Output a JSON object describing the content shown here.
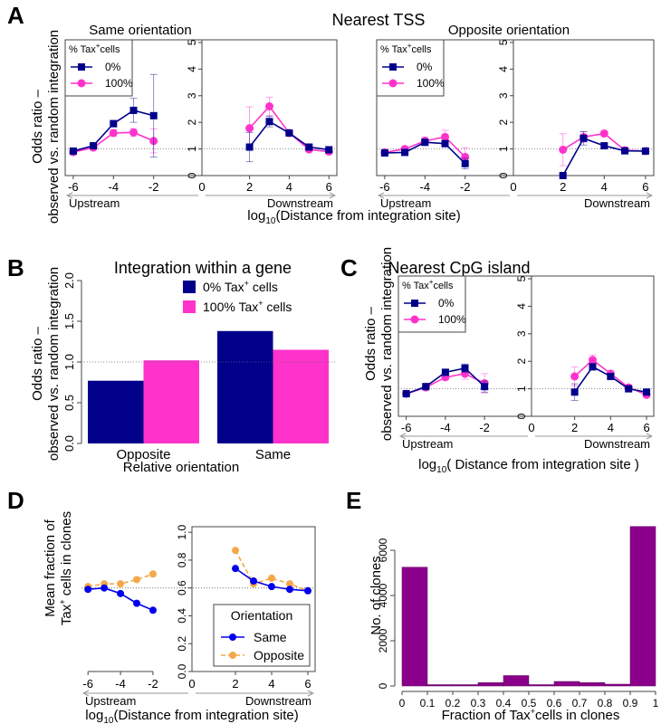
{
  "colors": {
    "c0": "#00008b",
    "c100": "#ff33cc",
    "same": "#0000ee",
    "opposite": "#f4a849",
    "bar": "#8b008b"
  },
  "panels": {
    "A": {
      "letter": "A",
      "title": "Nearest TSS",
      "ylabel_line1": "Odds ratio –",
      "ylabel_line2": "observed vs. random integration",
      "xlabel_main": "log",
      "xlabel_sub": "10",
      "xlabel_rest": "(Distance from integration site)",
      "legend": {
        "title_pre": "% Tax",
        "title_sup": "+",
        "title_post": "cells",
        "items": [
          "0%",
          "100%"
        ]
      },
      "left": {
        "subtitle": "Same orientation",
        "upstream": {
          "x": [
            -6,
            -5,
            -4,
            -3,
            -2
          ],
          "s0": [
            0.92,
            1.12,
            1.95,
            2.45,
            2.25
          ],
          "s100": [
            0.88,
            1.05,
            1.6,
            1.62,
            1.3
          ],
          "err0": [
            0.05,
            0.06,
            0.12,
            0.45,
            1.55
          ],
          "err100": [
            0.05,
            0.06,
            0.12,
            0.15,
            0.45
          ]
        },
        "downstream": {
          "x": [
            2,
            3,
            4,
            5,
            6
          ],
          "s0": [
            1.07,
            2.03,
            1.6,
            1.07,
            0.97
          ],
          "s100": [
            1.78,
            2.6,
            1.6,
            0.98,
            0.9
          ],
          "err0": [
            0.55,
            0.2,
            0.08,
            0.05,
            0.05
          ],
          "err100": [
            0.8,
            0.35,
            0.1,
            0.06,
            0.05
          ]
        }
      },
      "right": {
        "subtitle": "Opposite orientation",
        "upstream": {
          "x": [
            -6,
            -5,
            -4,
            -3,
            -2
          ],
          "s0": [
            0.85,
            0.87,
            1.25,
            1.2,
            0.45
          ],
          "s100": [
            0.87,
            1.0,
            1.3,
            1.45,
            0.7
          ],
          "err0": [
            0.05,
            0.05,
            0.12,
            0.12,
            0.2
          ],
          "err100": [
            0.05,
            0.06,
            0.15,
            0.25,
            0.35
          ]
        },
        "downstream": {
          "x": [
            2,
            3,
            4,
            5,
            6
          ],
          "s0": [
            0.0,
            1.4,
            1.12,
            0.93,
            0.92
          ],
          "s100": [
            0.97,
            1.45,
            1.58,
            0.95,
            0.92
          ],
          "err0": [
            0.05,
            0.25,
            0.08,
            0.05,
            0.05
          ],
          "err100": [
            0.6,
            0.2,
            0.1,
            0.06,
            0.05
          ]
        }
      },
      "xticks_up": [
        "-6",
        "-4",
        "-2"
      ],
      "xticks_down": [
        "2",
        "4",
        "6"
      ],
      "zero_tick": "0",
      "yticks": [
        "0",
        "1",
        "2",
        "3",
        "4",
        "5"
      ],
      "upstream_label": "Upstream",
      "downstream_label": "Downstream"
    },
    "B": {
      "letter": "B",
      "title": "Integration within a gene",
      "ylabel_line1": "Odds ratio –",
      "ylabel_line2": "observed vs. random integration",
      "xlabel": "Relative orientation",
      "yticks": [
        "0.0",
        "0.5",
        "1.0",
        "1.5",
        "2.0"
      ],
      "legend_items": [
        {
          "pre": "0% Tax",
          "sup": "+",
          "post": " cells"
        },
        {
          "pre": "100% Tax",
          "sup": "+",
          "post": " cells"
        }
      ],
      "chart_data": {
        "type": "bar",
        "categories": [
          "Opposite",
          "Same"
        ],
        "series": [
          {
            "name": "0% Tax+ cells",
            "values": [
              0.77,
              1.38
            ]
          },
          {
            "name": "100% Tax+ cells",
            "values": [
              1.02,
              1.15
            ]
          }
        ],
        "ylim": [
          0,
          2.0
        ],
        "xlabel": "Relative orientation",
        "ylabel": "Odds ratio – observed vs. random integration",
        "reference_line": 1.0
      }
    },
    "C": {
      "letter": "C",
      "title": "Nearest CpG island",
      "ylabel_line1": "Odds ratio –",
      "ylabel_line2": "observed vs. random integration",
      "xlabel_main": "log",
      "xlabel_sub": "10",
      "xlabel_rest": "( Distance from integration site )",
      "legend": {
        "title_pre": "% Tax",
        "title_sup": "+",
        "title_post": "cells",
        "items": [
          "0%",
          "100%"
        ]
      },
      "upstream": {
        "x": [
          -6,
          -5,
          -4,
          -3,
          -2
        ],
        "s0": [
          0.82,
          1.08,
          1.6,
          1.75,
          1.08
        ],
        "s100": [
          0.82,
          1.05,
          1.42,
          1.55,
          1.2
        ],
        "err0": [
          0.05,
          0.05,
          0.1,
          0.15,
          0.2
        ],
        "err100": [
          0.05,
          0.06,
          0.1,
          0.2,
          0.35
        ]
      },
      "downstream": {
        "x": [
          2,
          3,
          4,
          5,
          6
        ],
        "s0": [
          0.88,
          1.8,
          1.45,
          1.0,
          0.88
        ],
        "s100": [
          1.45,
          2.05,
          1.55,
          1.05,
          0.78
        ],
        "err0": [
          0.3,
          0.12,
          0.08,
          0.05,
          0.05
        ],
        "err100": [
          0.35,
          0.18,
          0.1,
          0.06,
          0.06
        ]
      },
      "xticks_up": [
        "-6",
        "-4",
        "-2"
      ],
      "xticks_down": [
        "2",
        "4",
        "6"
      ],
      "zero_tick": "0",
      "yticks": [
        "0",
        "1",
        "2",
        "3",
        "4",
        "5"
      ],
      "upstream_label": "Upstream",
      "downstream_label": "Downstream"
    },
    "D": {
      "letter": "D",
      "ylabel_line1": "Mean fraction of",
      "ylabel_line2_pre": "Tax",
      "ylabel_line2_sup": "+",
      "ylabel_line2_post": " cells in clones",
      "xlabel_main": "log",
      "xlabel_sub": "10",
      "xlabel_rest": "(Distance from integration site)",
      "legend_title": "Orientation",
      "legend_items": [
        "Same",
        "Opposite"
      ],
      "upstream": {
        "x": [
          -6,
          -5,
          -4,
          -3,
          -2
        ],
        "same": [
          0.59,
          0.6,
          0.56,
          0.49,
          0.44
        ],
        "opposite": [
          0.61,
          0.63,
          0.63,
          0.66,
          0.7
        ]
      },
      "downstream": {
        "x": [
          2,
          3,
          4,
          5,
          6
        ],
        "same": [
          0.74,
          0.65,
          0.61,
          0.59,
          0.58
        ],
        "opposite": [
          0.87,
          0.63,
          0.67,
          0.63,
          0.58
        ]
      },
      "xticks_up": [
        "-6",
        "-4",
        "-2"
      ],
      "xticks_down": [
        "2",
        "4",
        "6"
      ],
      "zero_tick": "0",
      "yticks": [
        "0.0",
        "0.2",
        "0.4",
        "0.6",
        "0.8",
        "1.0"
      ],
      "reference": 0.6,
      "upstream_label": "Upstream",
      "downstream_label": "Downstream"
    },
    "E": {
      "letter": "E",
      "ylabel": "No. of clones",
      "xlabel_pre": "Fraction of Tax",
      "xlabel_sup": "+",
      "xlabel_post": "cells in clones",
      "chart_data": {
        "type": "bar",
        "categories": [
          "0-0.1",
          "0.1-0.2",
          "0.2-0.3",
          "0.3-0.4",
          "0.4-0.5",
          "0.5-0.6",
          "0.6-0.7",
          "0.7-0.8",
          "0.8-0.9",
          "0.9-1"
        ],
        "values": [
          5250,
          25,
          30,
          150,
          460,
          25,
          200,
          150,
          80,
          7050
        ],
        "ylim": [
          0,
          7200
        ],
        "xlabel": "Fraction of Tax+ cells in clones",
        "ylabel": "No. of clones",
        "xticks": [
          "0",
          "0.1",
          "0.2",
          "0.3",
          "0.4",
          "0.5",
          "0.6",
          "0.7",
          "0.8",
          "0.9",
          "1"
        ],
        "yticks": [
          "0",
          "2000",
          "4000",
          "6000"
        ]
      }
    }
  }
}
